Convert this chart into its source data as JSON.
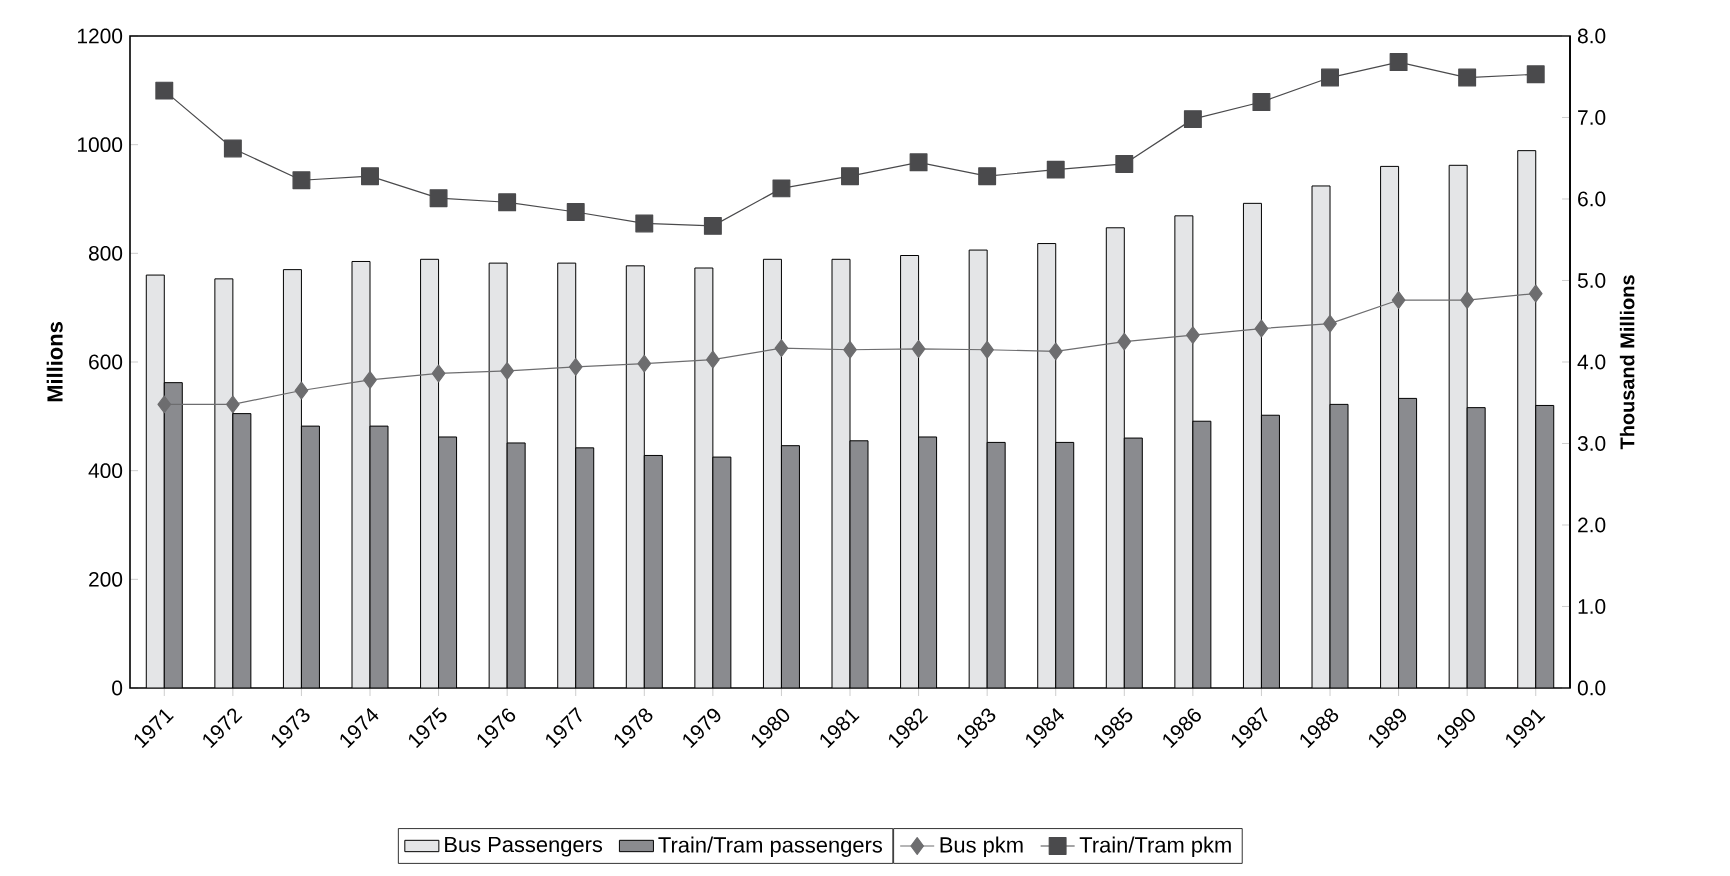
{
  "chart_data": {
    "type": "bar",
    "ylabel": "Millions",
    "y2label": "Thousand Millions",
    "categories": [
      "1971",
      "1972",
      "1973",
      "1974",
      "1975",
      "1976",
      "1977",
      "1978",
      "1979",
      "1980",
      "1981",
      "1982",
      "1983",
      "1984",
      "1985",
      "1986",
      "1987",
      "1988",
      "1989",
      "1990",
      "1991"
    ],
    "series": [
      {
        "name": "Bus Passengers",
        "color": "#e4e5e7",
        "values": [
          760,
          753,
          770,
          785,
          789,
          782,
          782,
          777,
          773,
          789,
          789,
          796,
          806,
          818,
          847,
          869,
          892,
          924,
          960,
          962,
          989
        ]
      },
      {
        "name": "Train/Tram passengers",
        "color": "#8a8b8f",
        "values": [
          562,
          505,
          482,
          482,
          462,
          451,
          442,
          428,
          425,
          446,
          455,
          462,
          452,
          452,
          460,
          491,
          502,
          522,
          533,
          516,
          520
        ]
      },
      {
        "name": "Bus pkm",
        "type": "line",
        "axis": "y2",
        "marker": "diamond",
        "color": "#6d6d6f",
        "values": [
          3.48,
          3.48,
          3.65,
          3.78,
          3.86,
          3.89,
          3.94,
          3.98,
          4.03,
          4.17,
          4.15,
          4.16,
          4.15,
          4.13,
          4.25,
          4.33,
          4.41,
          4.47,
          4.76,
          4.76,
          4.84
        ]
      },
      {
        "name": "Train/Tram pkm",
        "type": "line",
        "axis": "y2",
        "marker": "square",
        "color": "#4a4a4c",
        "values": [
          7.33,
          6.62,
          6.23,
          6.28,
          6.01,
          5.96,
          5.84,
          5.7,
          5.67,
          6.13,
          6.28,
          6.45,
          6.28,
          6.36,
          6.43,
          6.98,
          7.19,
          7.49,
          7.68,
          7.49,
          7.53
        ]
      }
    ],
    "ylim": [
      0,
      1200
    ],
    "yticks": [
      0,
      200,
      400,
      600,
      800,
      1000,
      1200
    ],
    "y2lim": [
      0,
      8
    ],
    "y2ticks": [
      {
        "value": 0,
        "label": "0.0"
      },
      {
        "value": 1,
        "label": "1.0"
      },
      {
        "value": 2,
        "label": "2.0"
      },
      {
        "value": 3,
        "label": "3.0"
      },
      {
        "value": 4,
        "label": "4.0"
      },
      {
        "value": 5,
        "label": "5.0"
      },
      {
        "value": 6,
        "label": "6.0"
      },
      {
        "value": 7,
        "label": "7.0"
      },
      {
        "value": 8,
        "label": "8.0"
      }
    ],
    "legend": "bottom",
    "grid": false,
    "line_style": "solid"
  }
}
